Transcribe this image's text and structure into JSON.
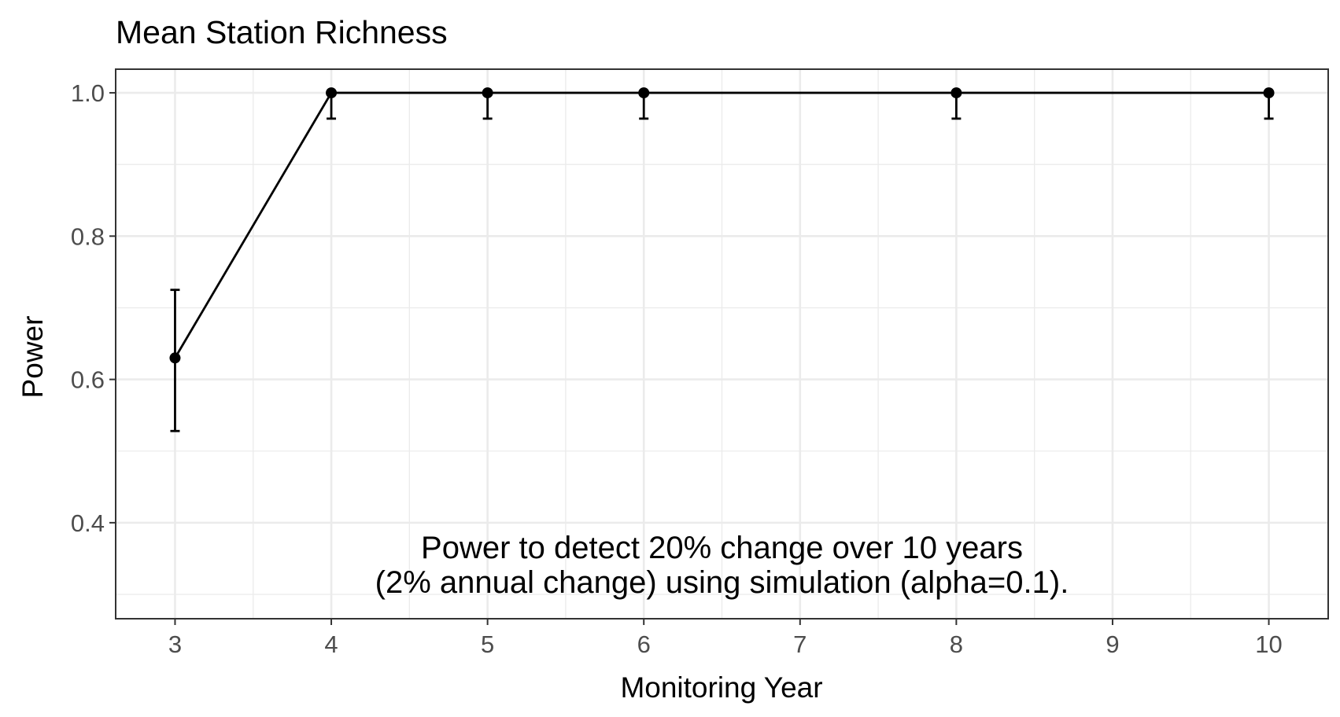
{
  "chart_data": {
    "type": "line",
    "title": "Mean Station Richness",
    "xlabel": "Monitoring Year",
    "ylabel": "Power",
    "xlim": [
      2.62,
      10.38
    ],
    "ylim": [
      0.266,
      1.033
    ],
    "x_ticks": [
      3,
      4,
      5,
      6,
      7,
      8,
      9,
      10
    ],
    "y_ticks": [
      0.4,
      0.6,
      0.8,
      1.0
    ],
    "x_tick_labels": [
      "3",
      "4",
      "5",
      "6",
      "7",
      "8",
      "9",
      "10"
    ],
    "y_tick_labels": [
      "0.4",
      "0.6",
      "0.8",
      "1.0"
    ],
    "grid": true,
    "legend": "none",
    "series": [
      {
        "x": [
          3,
          4,
          5,
          6,
          8,
          10
        ],
        "y": [
          0.63,
          1.0,
          1.0,
          1.0,
          1.0,
          1.0
        ],
        "y_lower": [
          0.528,
          0.964,
          0.964,
          0.964,
          0.964,
          0.964
        ],
        "y_upper": [
          0.725,
          1.0,
          1.0,
          1.0,
          1.0,
          1.0
        ],
        "color": "#000000"
      }
    ],
    "annotation": {
      "line1": "Power to detect 20% change over 10 years",
      "line2": "(2% annual change) using simulation (alpha=0.1).",
      "x": 6.5,
      "y": 0.325
    }
  }
}
